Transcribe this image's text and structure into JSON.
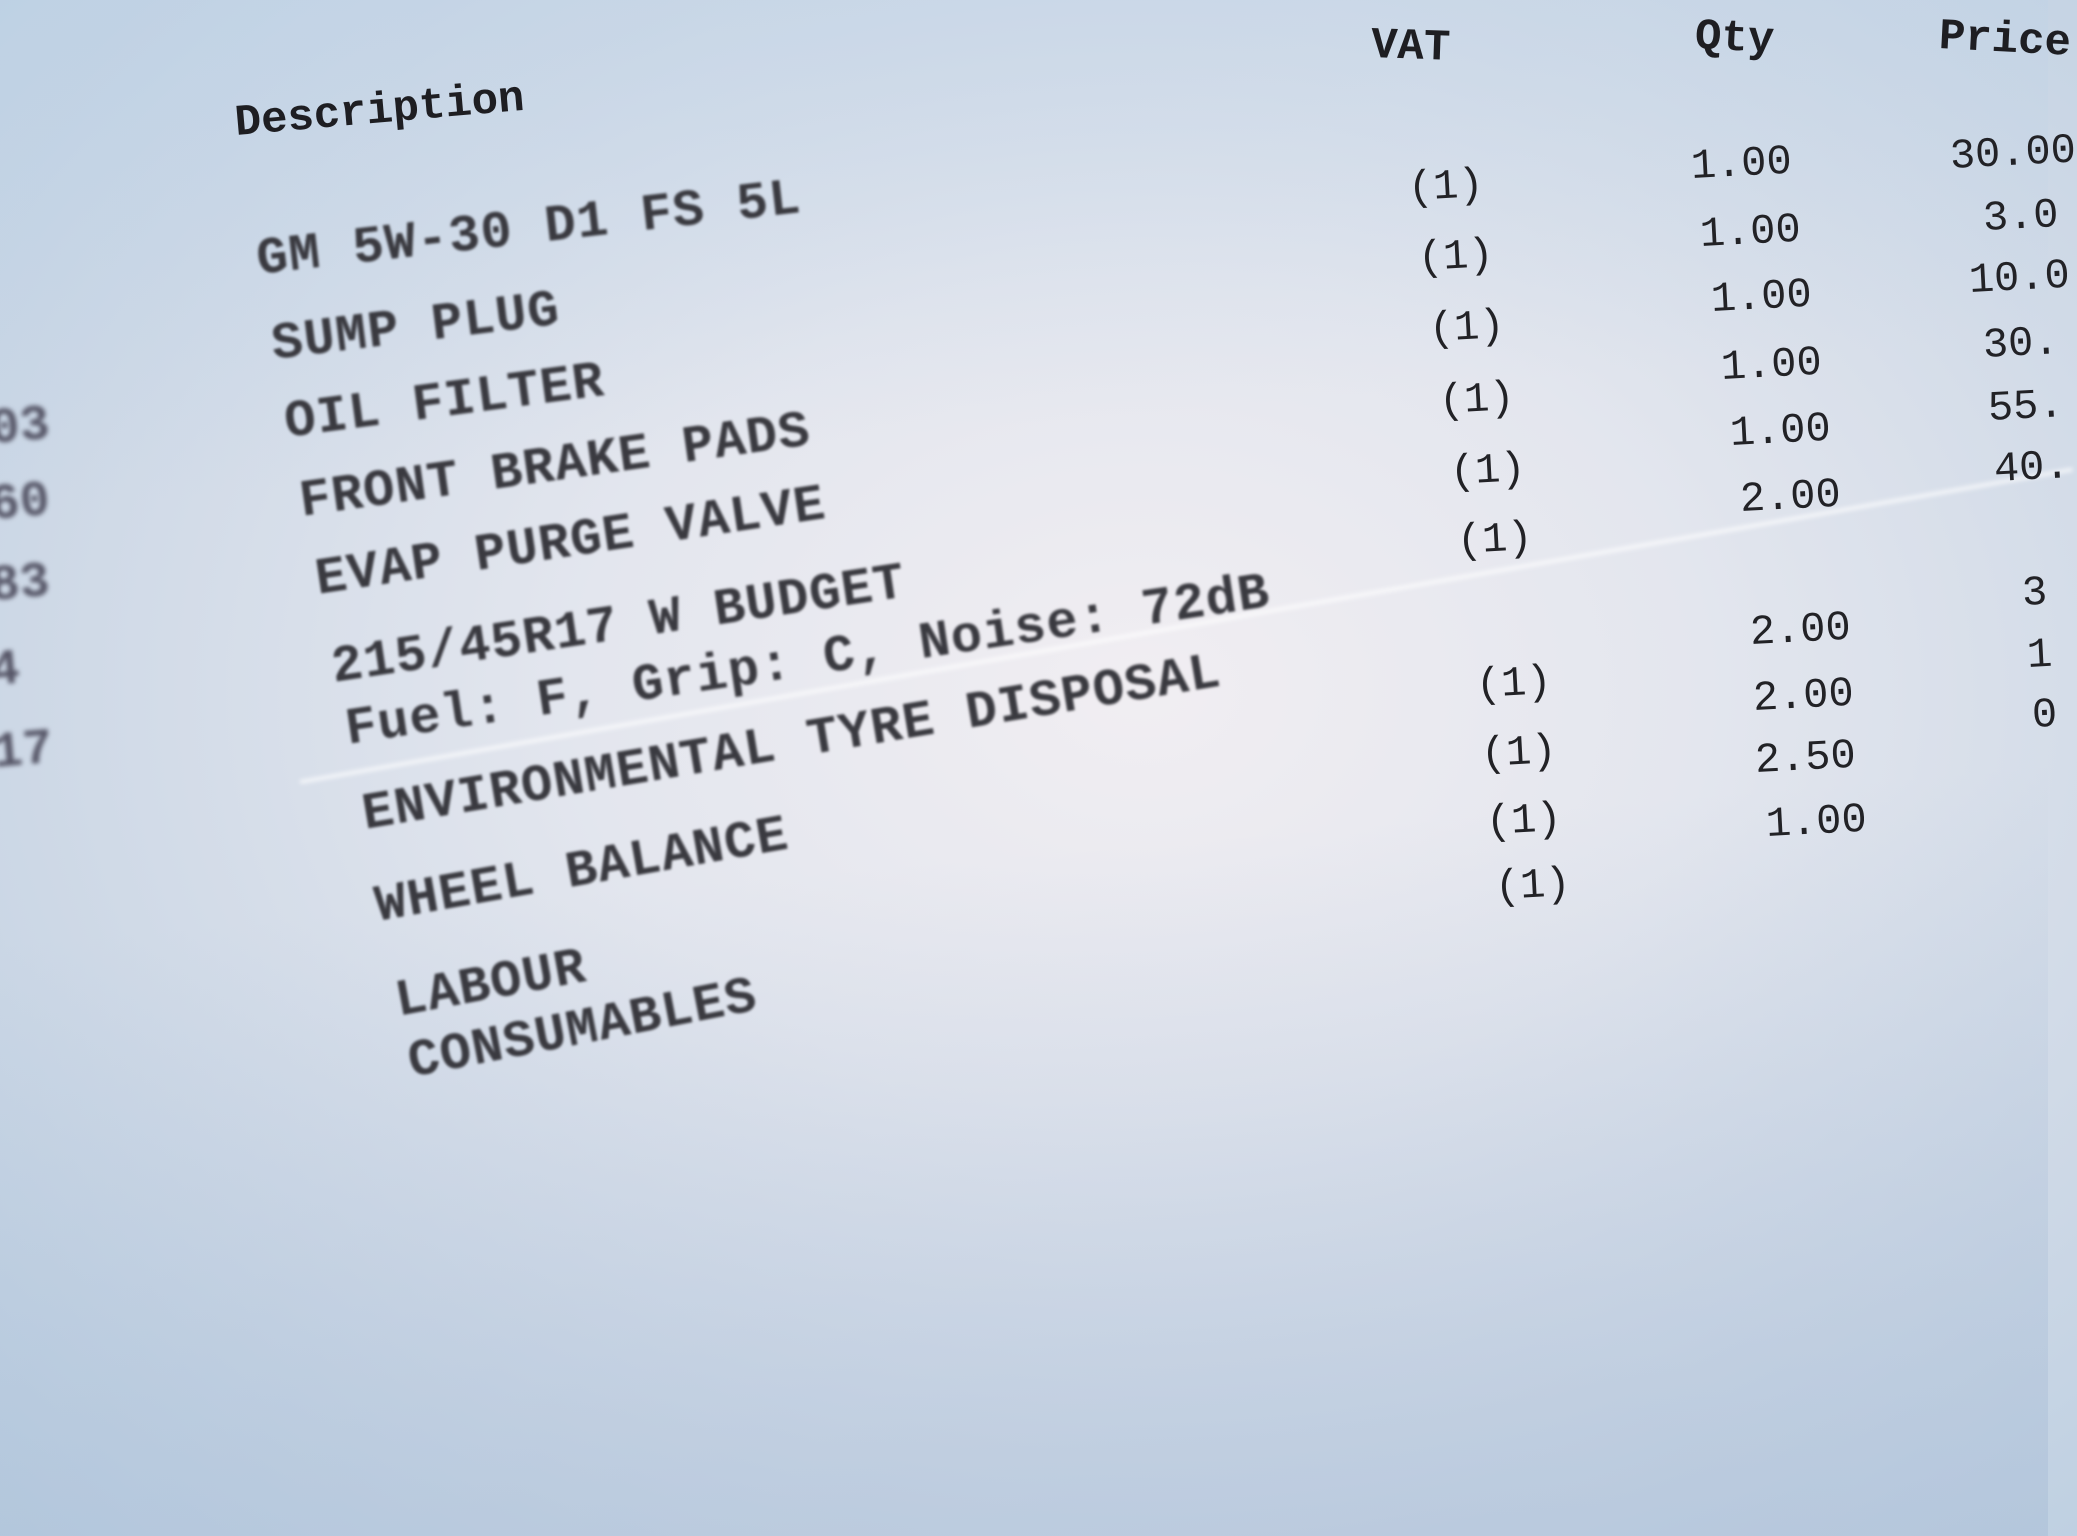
{
  "headers": {
    "description": "Description",
    "vat": "VAT",
    "qty": "Qty",
    "price": "Price"
  },
  "rows": [
    {
      "description": "GM 5W-30 D1 FS 5L",
      "vat": "(1)",
      "qty": "1.00",
      "price": "30.00"
    },
    {
      "description": "SUMP PLUG",
      "vat": "(1)",
      "qty": "1.00",
      "price": "3.0"
    },
    {
      "description": "OIL FILTER",
      "vat": "(1)",
      "qty": "1.00",
      "price": "10.0"
    },
    {
      "description": "FRONT BRAKE PADS",
      "vat": "(1)",
      "qty": "1.00",
      "price": "30."
    },
    {
      "description": "EVAP PURGE VALVE",
      "vat": "(1)",
      "qty": "1.00",
      "price": "55."
    },
    {
      "description": "215/45R17 W BUDGET",
      "vat": "(1)",
      "qty": "2.00",
      "price": "40."
    },
    {
      "description": "Fuel: F, Grip: C, Noise: 72dB",
      "vat": "",
      "qty": "",
      "price": ""
    },
    {
      "description": "ENVIRONMENTAL TYRE DISPOSAL",
      "vat": "(1)",
      "qty": "2.00",
      "price": "3"
    },
    {
      "description": "WHEEL BALANCE",
      "vat": "(1)",
      "qty": "2.00",
      "price": "1"
    },
    {
      "description": "LABOUR",
      "vat": "(1)",
      "qty": "2.50",
      "price": "0"
    },
    {
      "description": "CONSUMABLES",
      "vat": "(1)",
      "qty": "1.00",
      "price": ""
    }
  ],
  "left_column_fragments": [
    "03",
    "60",
    "83",
    "4",
    "17"
  ]
}
